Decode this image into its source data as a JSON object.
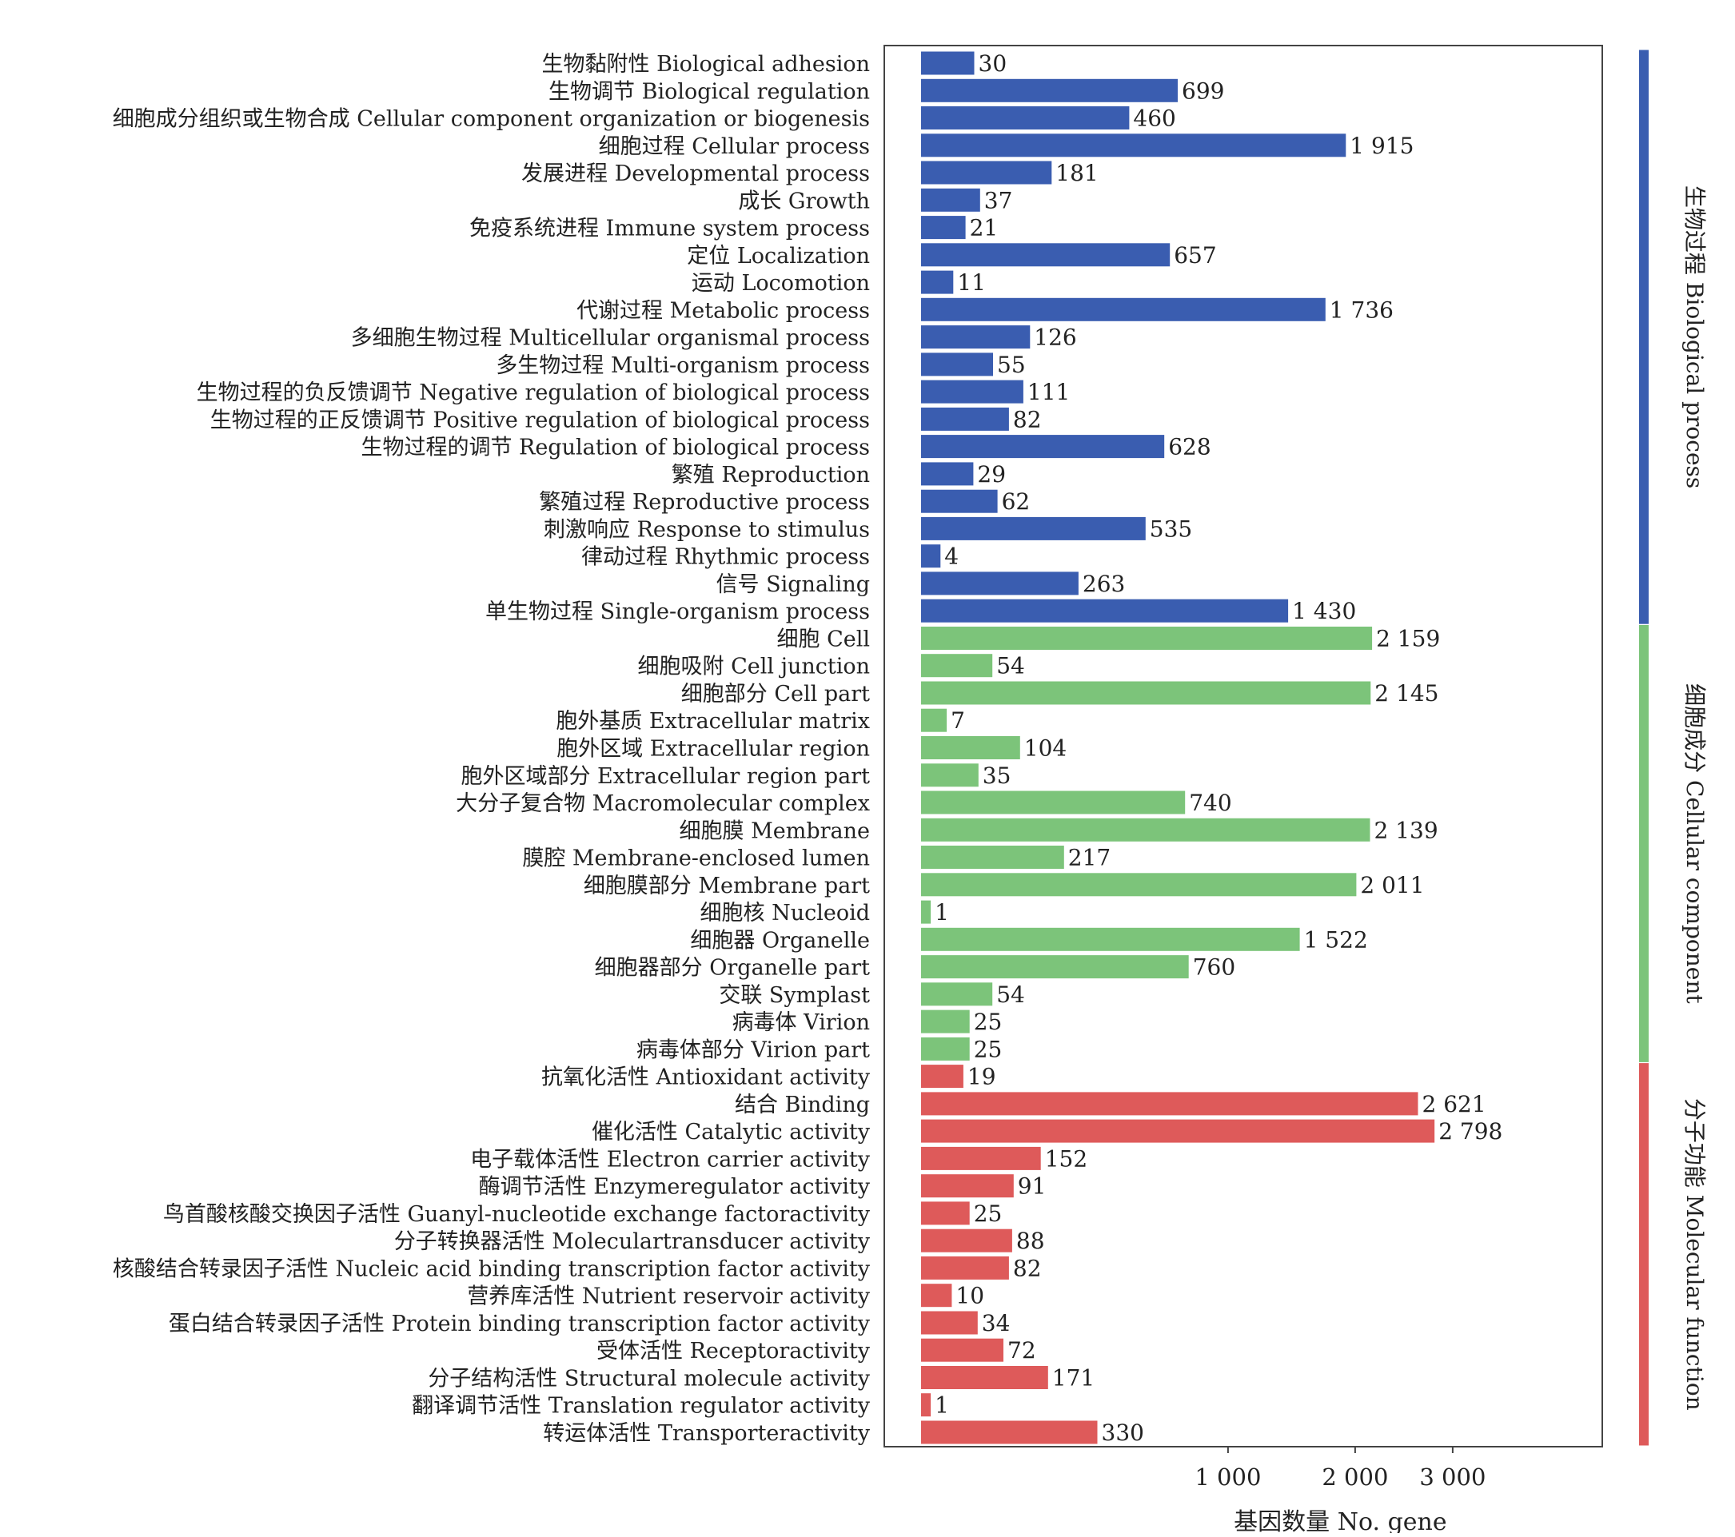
{
  "chart_data": {
    "type": "bar",
    "orientation": "horizontal",
    "xlabel": "基因数量 No. gene",
    "x_scale": "sqrt",
    "xticks": [
      {
        "value": 1000,
        "label": "1 000"
      },
      {
        "value": 2000,
        "label": "2 000"
      },
      {
        "value": 3000,
        "label": "3 000"
      }
    ],
    "groups": [
      {
        "name": "生物过程 Biological process",
        "color": "#3a5db0",
        "categories": [
          {
            "label": "生物黏附性 Biological adhesion",
            "value": 30,
            "value_label": "30"
          },
          {
            "label": "生物调节 Biological regulation",
            "value": 699,
            "value_label": "699"
          },
          {
            "label": "细胞成分组织或生物合成 Cellular component organization or biogenesis",
            "value": 460,
            "value_label": "460"
          },
          {
            "label": "细胞过程 Cellular process",
            "value": 1915,
            "value_label": "1 915"
          },
          {
            "label": "发展进程 Developmental process",
            "value": 181,
            "value_label": "181"
          },
          {
            "label": "成长 Growth",
            "value": 37,
            "value_label": "37"
          },
          {
            "label": "免疫系统进程 Immune system process",
            "value": 21,
            "value_label": "21"
          },
          {
            "label": "定位 Localization",
            "value": 657,
            "value_label": "657"
          },
          {
            "label": "运动 Locomotion",
            "value": 11,
            "value_label": "11"
          },
          {
            "label": "代谢过程 Metabolic process",
            "value": 1736,
            "value_label": "1 736"
          },
          {
            "label": "多细胞生物过程 Multicellular organismal process",
            "value": 126,
            "value_label": "126"
          },
          {
            "label": "多生物过程 Multi-organism process",
            "value": 55,
            "value_label": "55"
          },
          {
            "label": "生物过程的负反馈调节 Negative regulation of biological process",
            "value": 111,
            "value_label": "111"
          },
          {
            "label": "生物过程的正反馈调节 Positive regulation of biological process",
            "value": 82,
            "value_label": "82"
          },
          {
            "label": "生物过程的调节 Regulation of biological process",
            "value": 628,
            "value_label": "628"
          },
          {
            "label": "繁殖 Reproduction",
            "value": 29,
            "value_label": "29"
          },
          {
            "label": "繁殖过程 Reproductive process",
            "value": 62,
            "value_label": "62"
          },
          {
            "label": "刺激响应 Response to stimulus",
            "value": 535,
            "value_label": "535"
          },
          {
            "label": "律动过程 Rhythmic process",
            "value": 4,
            "value_label": "4"
          },
          {
            "label": "信号 Signaling",
            "value": 263,
            "value_label": "263"
          },
          {
            "label": "单生物过程 Single-organism process",
            "value": 1430,
            "value_label": "1 430"
          }
        ]
      },
      {
        "name": "细胞成分 Cellular component",
        "color": "#7cc47a",
        "categories": [
          {
            "label": "细胞 Cell",
            "value": 2159,
            "value_label": "2 159"
          },
          {
            "label": "细胞吸附 Cell junction",
            "value": 54,
            "value_label": "54"
          },
          {
            "label": "细胞部分 Cell part",
            "value": 2145,
            "value_label": "2 145"
          },
          {
            "label": "胞外基质 Extracellular matrix",
            "value": 7,
            "value_label": "7"
          },
          {
            "label": "胞外区域 Extracellular region",
            "value": 104,
            "value_label": "104"
          },
          {
            "label": "胞外区域部分 Extracellular region part",
            "value": 35,
            "value_label": "35"
          },
          {
            "label": "大分子复合物 Macromolecular complex",
            "value": 740,
            "value_label": "740"
          },
          {
            "label": "细胞膜 Membrane",
            "value": 2139,
            "value_label": "2 139"
          },
          {
            "label": "膜腔 Membrane-enclosed lumen",
            "value": 217,
            "value_label": "217"
          },
          {
            "label": "细胞膜部分 Membrane part",
            "value": 2011,
            "value_label": "2 011"
          },
          {
            "label": "细胞核 Nucleoid",
            "value": 1,
            "value_label": "1"
          },
          {
            "label": "细胞器 Organelle",
            "value": 1522,
            "value_label": "1 522"
          },
          {
            "label": "细胞器部分 Organelle part",
            "value": 760,
            "value_label": "760"
          },
          {
            "label": "交联 Symplast",
            "value": 54,
            "value_label": "54"
          },
          {
            "label": "病毒体 Virion",
            "value": 25,
            "value_label": "25"
          },
          {
            "label": "病毒体部分 Virion part",
            "value": 25,
            "value_label": "25"
          }
        ]
      },
      {
        "name": "分子功能 Molecular function",
        "color": "#de5a5a",
        "categories": [
          {
            "label": "抗氧化活性 Antioxidant activity",
            "value": 19,
            "value_label": "19"
          },
          {
            "label": "结合 Binding",
            "value": 2621,
            "value_label": "2 621"
          },
          {
            "label": "催化活性 Catalytic activity",
            "value": 2798,
            "value_label": "2 798"
          },
          {
            "label": "电子载体活性 Electron carrier activity",
            "value": 152,
            "value_label": "152"
          },
          {
            "label": "酶调节活性 Enzymeregulator activity",
            "value": 91,
            "value_label": "91"
          },
          {
            "label": "鸟首酸核酸交换因子活性 Guanyl-nucleotide exchange factoractivity",
            "value": 25,
            "value_label": "25"
          },
          {
            "label": "分子转换器活性 Moleculartransducer activity",
            "value": 88,
            "value_label": "88"
          },
          {
            "label": "核酸结合转录因子活性 Nucleic acid binding transcription factor activity",
            "value": 82,
            "value_label": "82"
          },
          {
            "label": "营养库活性 Nutrient reservoir activity",
            "value": 10,
            "value_label": "10"
          },
          {
            "label": "蛋白结合转录因子活性 Protein binding transcription factor activity",
            "value": 34,
            "value_label": "34"
          },
          {
            "label": "受体活性 Receptoractivity",
            "value": 72,
            "value_label": "72"
          },
          {
            "label": "分子结构活性 Structural molecule activity",
            "value": 171,
            "value_label": "171"
          },
          {
            "label": "翻译调节活性 Translation regulator activity",
            "value": 1,
            "value_label": "1"
          },
          {
            "label": "转运体活性 Transporteractivity",
            "value": 330,
            "value_label": "330"
          }
        ]
      }
    ]
  }
}
